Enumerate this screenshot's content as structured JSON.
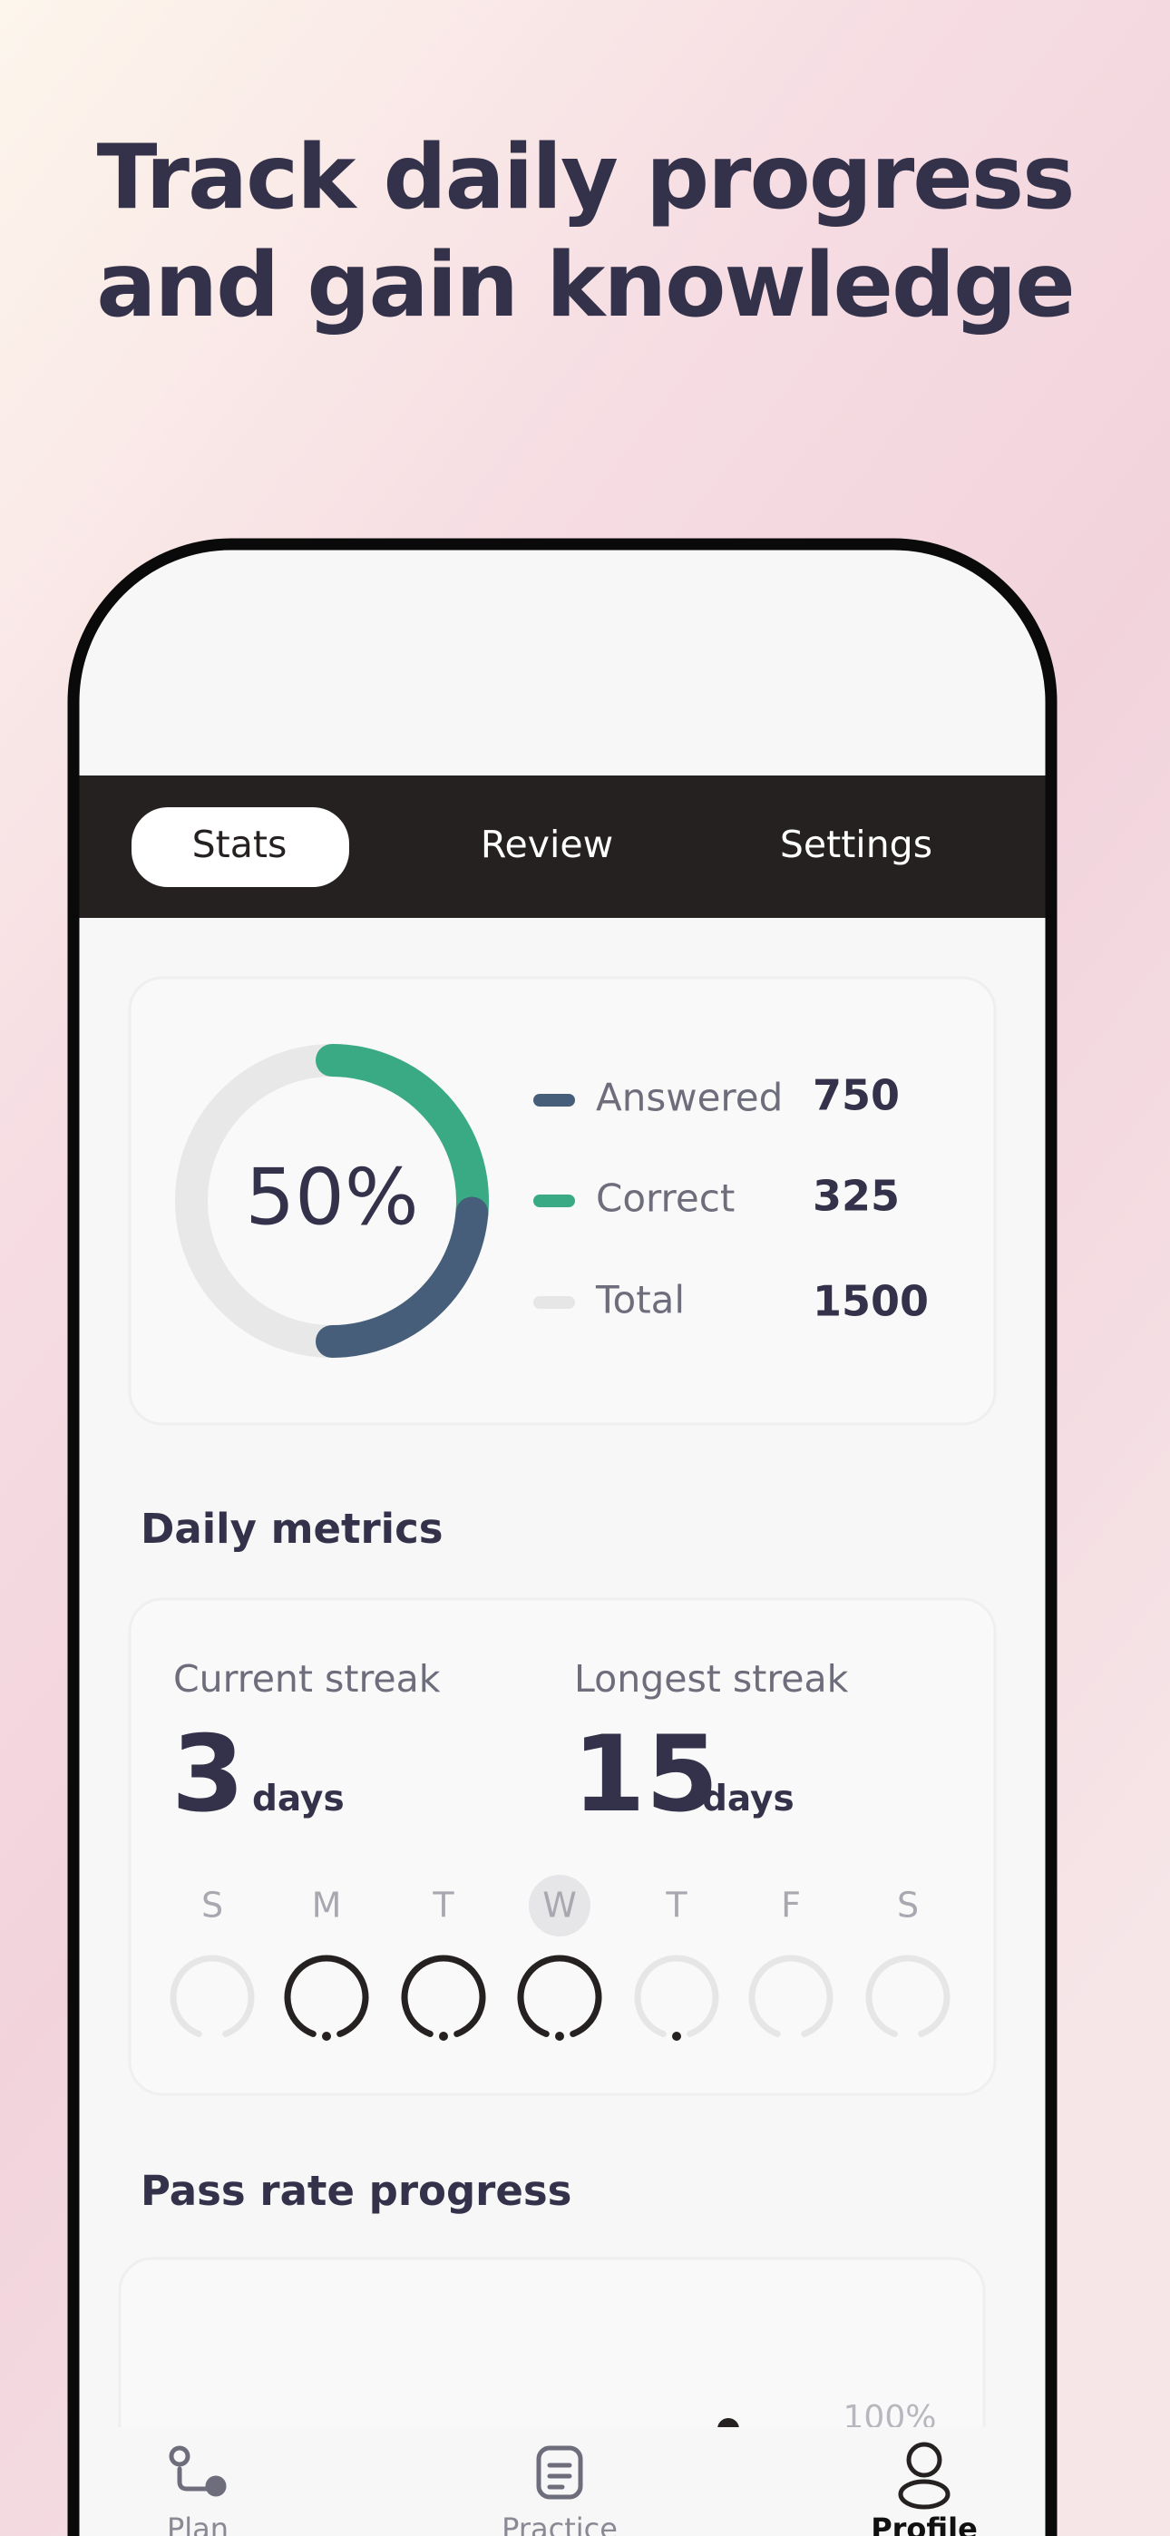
{
  "header": {
    "title_lines": [
      "Track daily progress",
      "and gain knowledge"
    ]
  },
  "tabs": [
    "Stats",
    "Review",
    "Settings"
  ],
  "summary": {
    "percent": "50%",
    "legend": [
      {
        "label": "Answered",
        "value": 750
      },
      {
        "label": "Correct",
        "value": 325
      },
      {
        "label": "Total",
        "value": 1500
      }
    ]
  },
  "daily_metrics": {
    "title": "Daily metrics",
    "current": {
      "label": "Current streak",
      "value": 3,
      "unit": "days"
    },
    "longest": {
      "label": "Longest streak",
      "value": 15,
      "unit": "days"
    },
    "days": [
      "S",
      "M",
      "T",
      "W",
      "T",
      "F",
      "S"
    ]
  },
  "pass_rate": {
    "title": "Pass rate progress",
    "axis_label": "100%"
  },
  "nav": [
    "Plan",
    "Practice",
    "Profile"
  ]
}
